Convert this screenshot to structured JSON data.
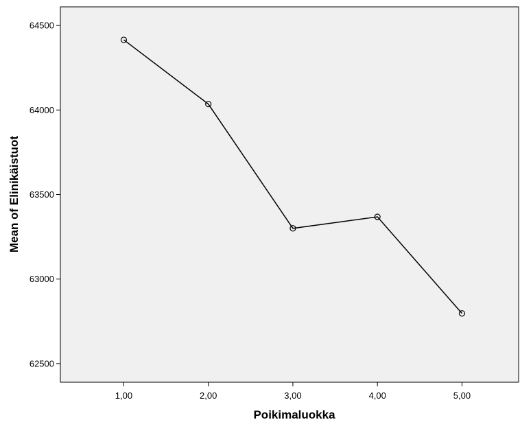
{
  "chart_data": {
    "type": "line",
    "title": "",
    "xlabel": "Poikimaluokka",
    "ylabel": "Mean of Elinikäistuot",
    "x_tick_labels": [
      "1,00",
      "2,00",
      "3,00",
      "4,00",
      "5,00"
    ],
    "x_range": [
      0.25,
      5.67
    ],
    "y_ticks": [
      62500,
      63000,
      63500,
      64000,
      64500
    ],
    "y_tick_labels": [
      "62500",
      "63000",
      "63500",
      "64000",
      "64500"
    ],
    "ylim": [
      62390,
      64610
    ],
    "grid": false,
    "marker": "open-circle",
    "plot_background": "#f0f0f0",
    "line_color": "#000000",
    "series": [
      {
        "x": [
          1,
          2,
          3,
          4,
          5
        ],
        "values": [
          64415,
          64035,
          63300,
          63368,
          62797
        ]
      }
    ]
  }
}
